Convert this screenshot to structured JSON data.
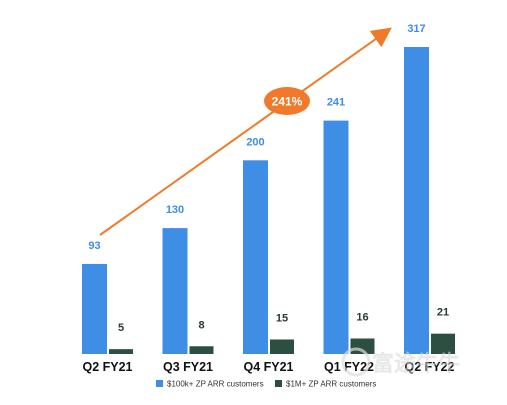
{
  "chart_data": {
    "type": "bar",
    "categories": [
      "Q2 FY21",
      "Q3 FY21",
      "Q4 FY21",
      "Q1 FY22",
      "Q2 FY22"
    ],
    "series": [
      {
        "name": "$100k+ ZP ARR customers",
        "values": [
          93,
          130,
          200,
          241,
          317
        ],
        "color": "#3e8ee6"
      },
      {
        "name": "$1M+ ZP ARR customers",
        "values": [
          5,
          8,
          15,
          16,
          21
        ],
        "color": "#2d4f42"
      }
    ],
    "ylim": [
      0,
      317
    ],
    "grid": false,
    "legend_position": "bottom-center",
    "annotation": {
      "label": "241%",
      "arrow_color": "#f07a2a",
      "badge_color": "#f07a2a"
    }
  },
  "watermark": {
    "text": "富途牛牛"
  }
}
